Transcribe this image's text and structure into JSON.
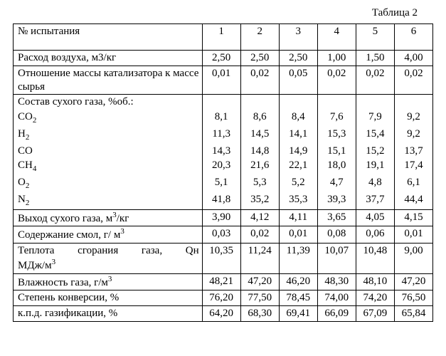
{
  "caption": "Таблица 2",
  "header": {
    "label": "№ испытания",
    "cols": [
      "1",
      "2",
      "3",
      "4",
      "5",
      "6"
    ]
  },
  "rows": [
    {
      "label": "Расход воздуха, м3/кг",
      "vals": [
        "2,50",
        "2,50",
        "2,50",
        "1,00",
        "1,50",
        "4,00"
      ]
    },
    {
      "label": "Отношение массы катализатора к массе сырья",
      "vals": [
        "0,01",
        "0,02",
        "0,05",
        "0,02",
        "0,02",
        "0,02"
      ]
    }
  ],
  "block": {
    "title": "Состав сухого газа, %об.:",
    "items": [
      {
        "label_html": "CO<span class='sub'>2</span>",
        "vals": [
          "8,1",
          "8,6",
          "8,4",
          "7,6",
          "7,9",
          "9,2"
        ]
      },
      {
        "label_html": "H<span class='sub'>2</span>",
        "vals": [
          "11,3",
          "14,5",
          "14,1",
          "15,3",
          "15,4",
          "9,2"
        ]
      },
      {
        "label_html": "CO",
        "vals": [
          "14,3",
          "14,8",
          "14,9",
          "15,1",
          "15,2",
          "13,7"
        ]
      },
      {
        "label_html": "CH<span class='sub'>4</span>",
        "vals": [
          "20,3",
          "21,6",
          "22,1",
          "18,0",
          "19,1",
          "17,4"
        ]
      },
      {
        "label_html": "O<span class='sub'>2</span>",
        "vals": [
          "5,1",
          "5,3",
          "5,2",
          "4,7",
          "4,8",
          "6,1"
        ]
      },
      {
        "label_html": "N<span class='sub'>2</span>",
        "vals": [
          "41,8",
          "35,2",
          "35,3",
          "39,3",
          "37,7",
          "44,4"
        ]
      }
    ]
  },
  "rows2": [
    {
      "label_html": "Выход сухого газа, м<span class='sup'>3</span>/кг",
      "vals": [
        "3,90",
        "4,12",
        "4,11",
        "3,65",
        "4,05",
        "4,15"
      ]
    },
    {
      "label_html": "Содержание смол, г/ м<span class='sup'>3</span>",
      "vals": [
        "0,03",
        "0,02",
        "0,01",
        "0,08",
        "0,06",
        "0,01"
      ]
    },
    {
      "label_html": "<div class='spaced'>Теплота&nbsp;&nbsp;&nbsp;сгорания&nbsp;&nbsp;&nbsp;газа,&nbsp;&nbsp;&nbsp;Qн</div>МДж/м<span class='sup'>3</span>",
      "vals": [
        "10,35",
        "11,24",
        "11,39",
        "10,07",
        "10,48",
        "9,00"
      ]
    },
    {
      "label_html": "Влажность газа, г/м<span class='sup'>3</span>",
      "vals": [
        "48,21",
        "47,20",
        "46,20",
        "48,30",
        "48,10",
        "47,20"
      ]
    },
    {
      "label_html": "Степень конверсии, %",
      "vals": [
        "76,20",
        "77,50",
        "78,45",
        "74,00",
        "74,20",
        "76,50"
      ]
    },
    {
      "label_html": "к.п.д. газификации, %",
      "vals": [
        "64,20",
        "68,30",
        "69,41",
        "66,09",
        "67,09",
        "65,84"
      ]
    }
  ],
  "col_widths": {
    "label": "45%",
    "val": "9.16%"
  }
}
